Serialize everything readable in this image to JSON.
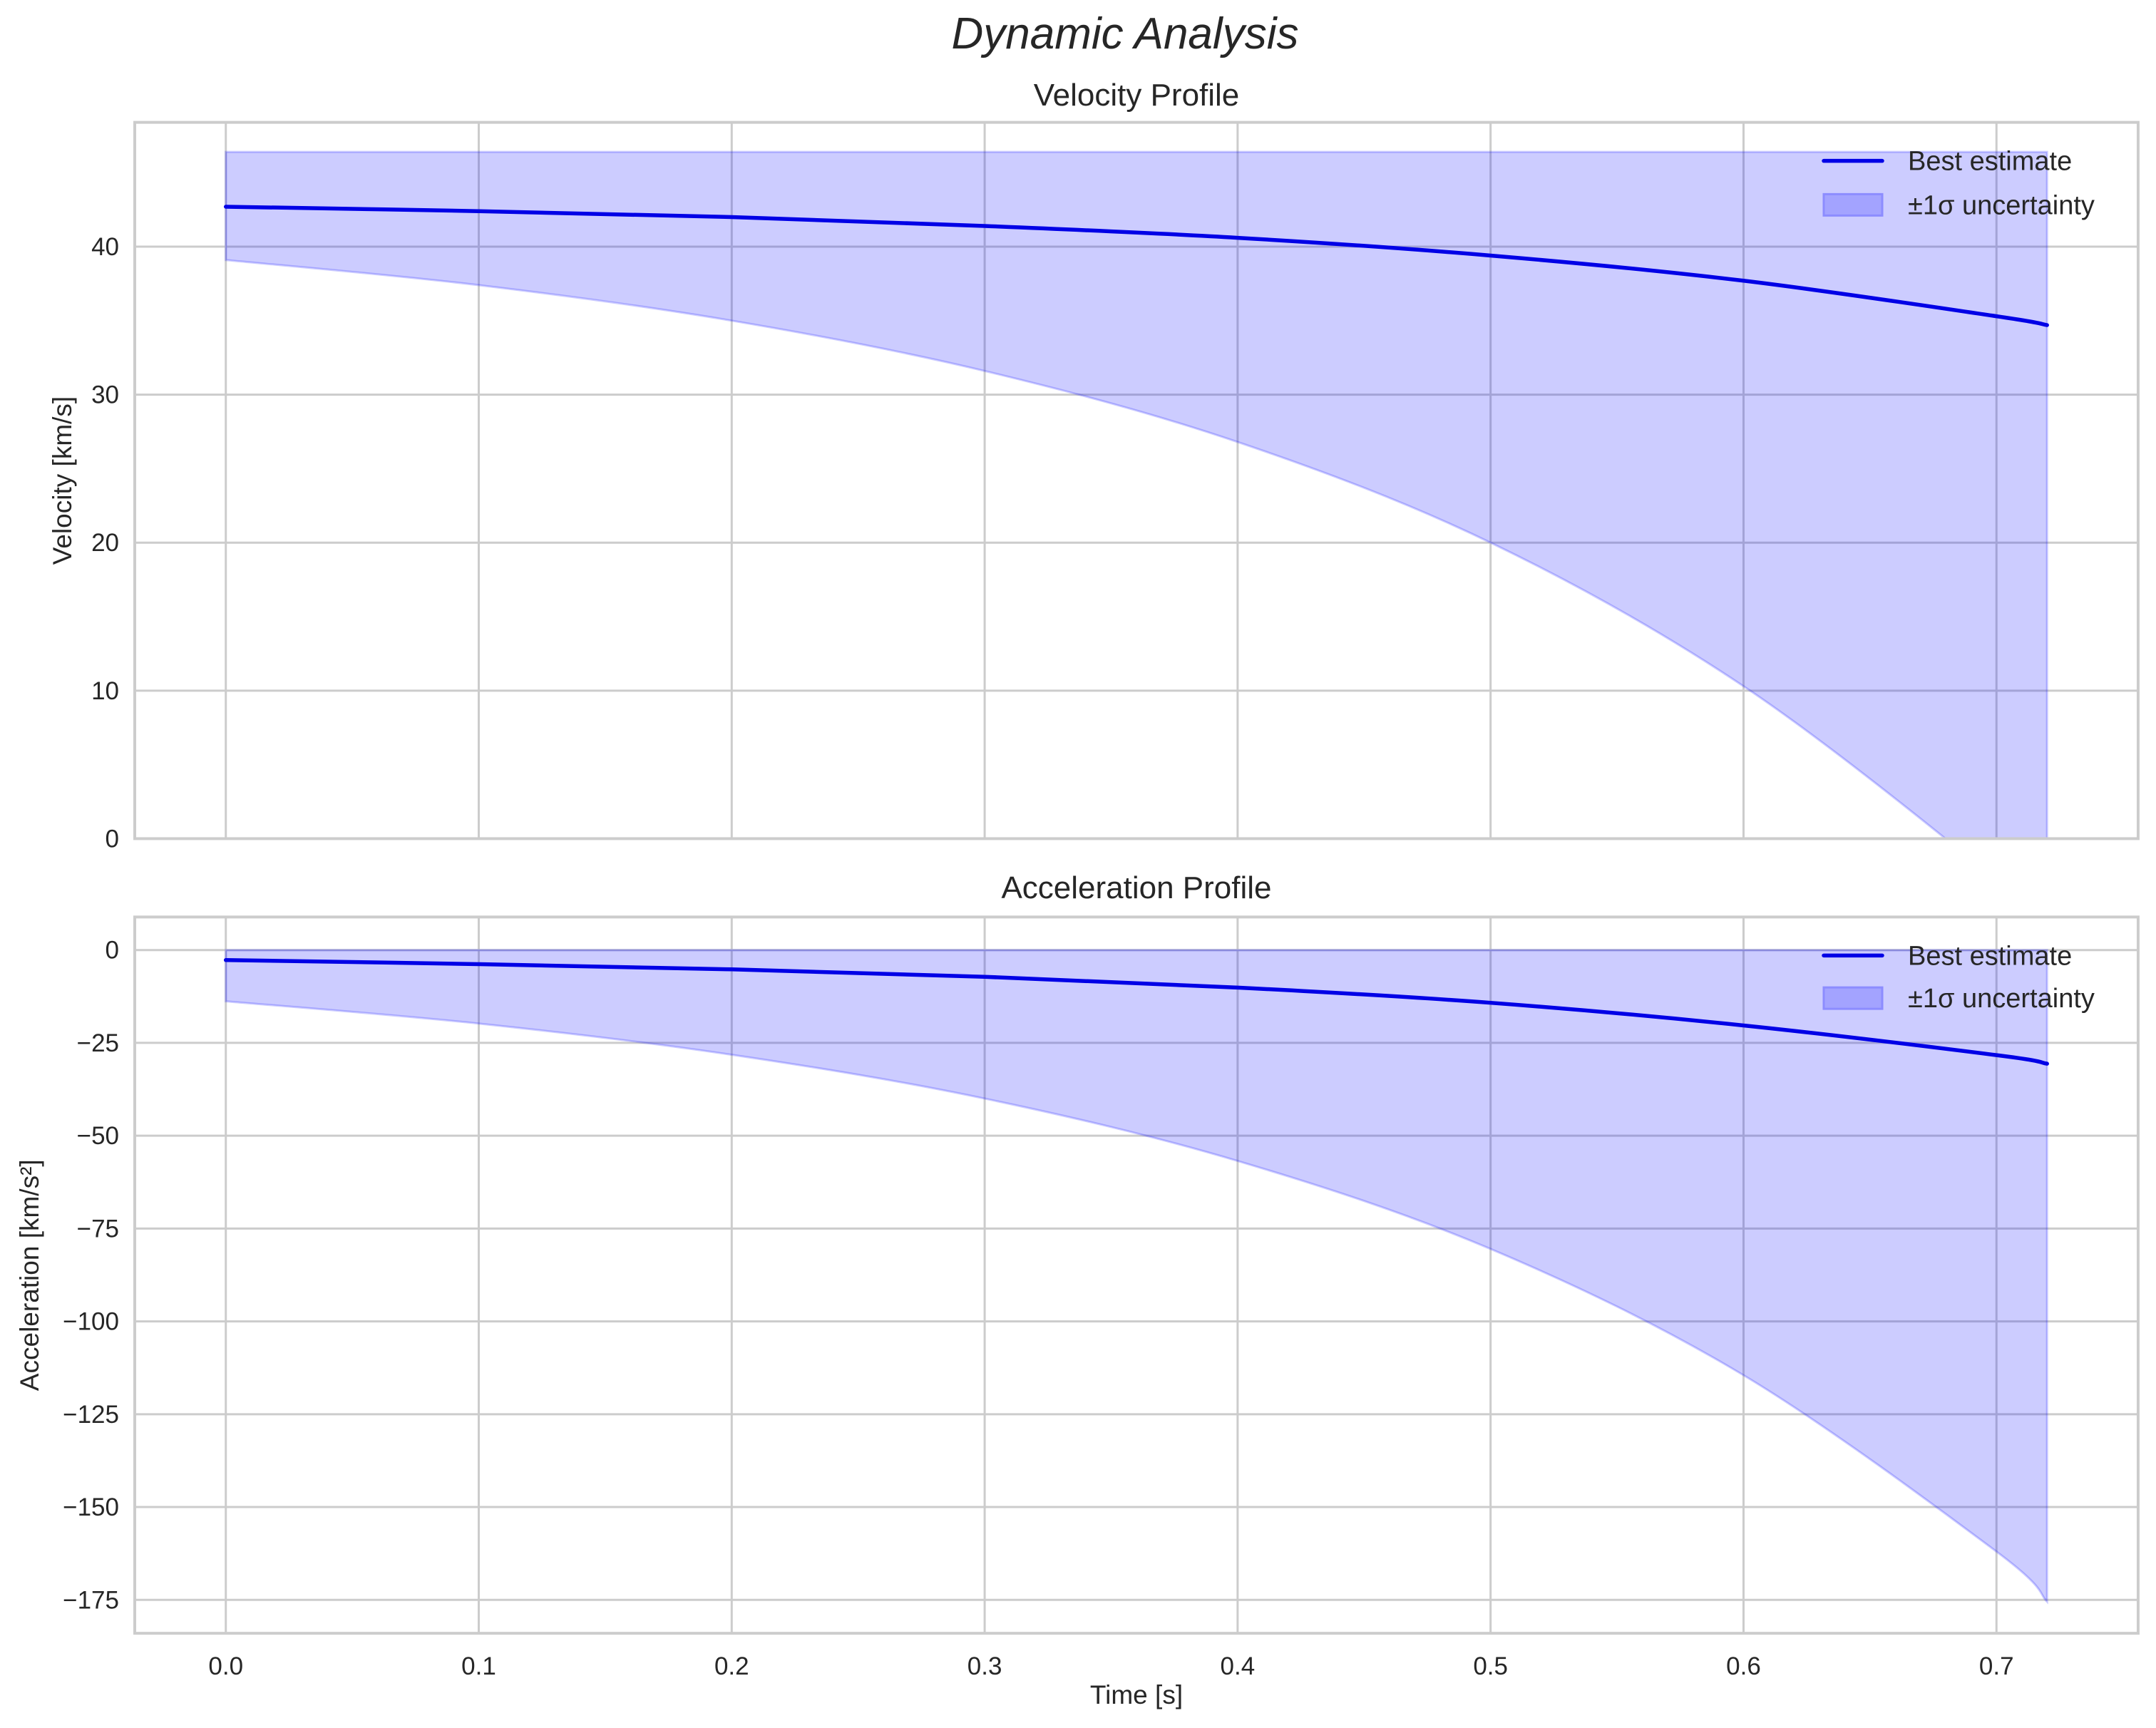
{
  "figure": {
    "suptitle": "Dynamic Analysis",
    "xlabel": "Time [s]"
  },
  "colors": {
    "line": "#0000e6",
    "band_fill": "#0000ff",
    "band_alpha": 0.2,
    "grid": "#cccccc",
    "text": "#262626"
  },
  "legend": {
    "line_label": "Best estimate",
    "band_label": "±1σ uncertainty"
  },
  "chart_data": [
    {
      "type": "line",
      "title": "Velocity Profile",
      "xlabel": "",
      "ylabel": "Velocity [km/s]",
      "xlim": [
        -0.036,
        0.756
      ],
      "ylim": [
        0,
        48.4
      ],
      "grid": true,
      "legend_position": "upper right",
      "xticks": [
        0.0,
        0.1,
        0.2,
        0.3,
        0.4,
        0.5,
        0.6,
        0.7
      ],
      "xtick_labels": [
        "0.0",
        "0.1",
        "0.2",
        "0.3",
        "0.4",
        "0.5",
        "0.6",
        "0.7"
      ],
      "yticks": [
        0,
        10,
        20,
        30,
        40
      ],
      "ytick_labels": [
        "0",
        "10",
        "20",
        "30",
        "40"
      ],
      "x": [
        0.0,
        0.1,
        0.2,
        0.3,
        0.4,
        0.5,
        0.6,
        0.7,
        0.72
      ],
      "series": [
        {
          "name": "Best estimate",
          "kind": "line",
          "values": [
            42.7,
            42.4,
            42.0,
            41.4,
            40.6,
            39.4,
            37.7,
            35.3,
            34.7
          ]
        },
        {
          "name": "±1σ uncertainty",
          "kind": "band",
          "lower": [
            39.1,
            37.4,
            35.0,
            31.6,
            26.8,
            20.0,
            10.3,
            -2.8,
            -6.5
          ],
          "upper": [
            46.4,
            46.4,
            46.4,
            46.4,
            46.4,
            46.4,
            46.4,
            46.4,
            46.4
          ]
        }
      ]
    },
    {
      "type": "line",
      "title": "Acceleration Profile",
      "xlabel": "Time [s]",
      "ylabel": "Acceleration [km/s²]",
      "xlim": [
        -0.036,
        0.756
      ],
      "ylim": [
        -184,
        8.9
      ],
      "grid": true,
      "legend_position": "upper right",
      "xticks": [
        0.0,
        0.1,
        0.2,
        0.3,
        0.4,
        0.5,
        0.6,
        0.7
      ],
      "xtick_labels": [
        "0.0",
        "0.1",
        "0.2",
        "0.3",
        "0.4",
        "0.5",
        "0.6",
        "0.7"
      ],
      "yticks": [
        0,
        -25,
        -50,
        -75,
        -100,
        -125,
        -150,
        -175
      ],
      "ytick_labels": [
        "0",
        "−25",
        "−50",
        "−75",
        "−100",
        "−125",
        "−150",
        "−175"
      ],
      "x": [
        0.0,
        0.1,
        0.2,
        0.3,
        0.4,
        0.5,
        0.6,
        0.7,
        0.72
      ],
      "series": [
        {
          "name": "Best estimate",
          "kind": "line",
          "values": [
            -2.7,
            -3.8,
            -5.2,
            -7.2,
            -10.1,
            -14.2,
            -20.3,
            -28.3,
            -30.6
          ]
        },
        {
          "name": "±1σ uncertainty",
          "kind": "band",
          "lower": [
            -13.8,
            -19.8,
            -28.2,
            -40.0,
            -56.8,
            -80.5,
            -114.5,
            -162.0,
            -175.5
          ],
          "upper": [
            0,
            0,
            0,
            0,
            0,
            0,
            0,
            0,
            0
          ]
        }
      ]
    }
  ]
}
